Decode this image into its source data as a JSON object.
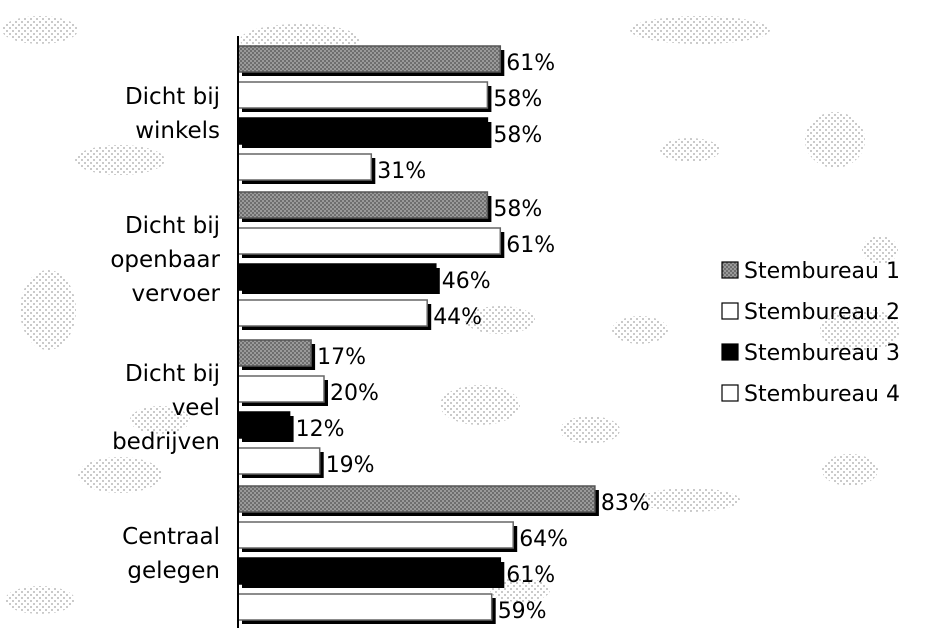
{
  "chart_data": {
    "type": "bar",
    "orientation": "horizontal",
    "categories": [
      [
        "Dicht bij",
        "winkels"
      ],
      [
        "Dicht bij",
        "openbaar",
        "vervoer"
      ],
      [
        "Dicht bij",
        "veel",
        "bedrijven"
      ],
      [
        "Centraal",
        "gelegen"
      ]
    ],
    "series": [
      {
        "name": "Stembureau 1",
        "values": [
          61,
          58,
          17,
          83
        ],
        "labels": [
          "61%",
          "58%",
          "17%",
          "83%"
        ]
      },
      {
        "name": "Stembureau 2",
        "values": [
          58,
          61,
          20,
          64
        ],
        "labels": [
          "58%",
          "61%",
          "20%",
          "64%"
        ]
      },
      {
        "name": "Stembureau 3",
        "values": [
          58,
          46,
          12,
          61
        ],
        "labels": [
          "58%",
          "46%",
          "12%",
          "61%"
        ]
      },
      {
        "name": "Stembureau 4",
        "values": [
          31,
          44,
          19,
          59
        ],
        "labels": [
          "31%",
          "44%",
          "19%",
          "59%"
        ]
      }
    ],
    "value_suffix": "%",
    "xlim": [
      0,
      100
    ],
    "grid": false,
    "legend_position": "right",
    "colors": {
      "series": [
        "#8a8a8a",
        "#ffffff",
        "#000000",
        "#ffffff"
      ],
      "axis": "#000000",
      "background": "#ffffff",
      "speckle": "#c4c4c4"
    }
  }
}
